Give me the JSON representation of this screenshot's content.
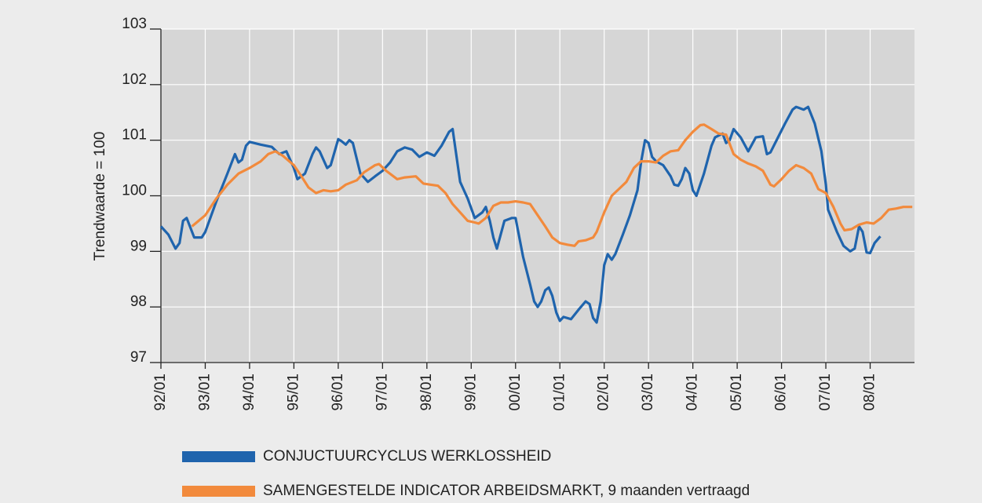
{
  "chart_data": {
    "type": "line",
    "y_label": "Trendwaarde = 100",
    "xlim": [
      1992,
      2009
    ],
    "ylim": [
      97,
      103
    ],
    "yticks": [
      97,
      98,
      99,
      100,
      101,
      102,
      103
    ],
    "xticks": [
      {
        "value": 1992,
        "label": "92/01"
      },
      {
        "value": 1993,
        "label": "93/01"
      },
      {
        "value": 1994,
        "label": "94/01"
      },
      {
        "value": 1995,
        "label": "95/01"
      },
      {
        "value": 1996,
        "label": "96/01"
      },
      {
        "value": 1997,
        "label": "97/01"
      },
      {
        "value": 1998,
        "label": "98/01"
      },
      {
        "value": 1999,
        "label": "99/01"
      },
      {
        "value": 2000,
        "label": "00/01"
      },
      {
        "value": 2001,
        "label": "01/01"
      },
      {
        "value": 2002,
        "label": "02/01"
      },
      {
        "value": 2003,
        "label": "03/01"
      },
      {
        "value": 2004,
        "label": "04/01"
      },
      {
        "value": 2005,
        "label": "05/01"
      },
      {
        "value": 2006,
        "label": "06/01"
      },
      {
        "value": 2007,
        "label": "07/01"
      },
      {
        "value": 2008,
        "label": "08/01"
      }
    ],
    "grid": true,
    "series": [
      {
        "name": "CONJUCTUURCYCLUS WERKLOSSHEID",
        "color": "#1f64ad",
        "x": [
          1992.0,
          1992.17,
          1992.33,
          1992.42,
          1992.5,
          1992.58,
          1992.75,
          1992.92,
          1993.0,
          1993.25,
          1993.5,
          1993.67,
          1993.75,
          1993.83,
          1993.92,
          1994.0,
          1994.25,
          1994.5,
          1994.67,
          1994.83,
          1995.0,
          1995.08,
          1995.25,
          1995.42,
          1995.5,
          1995.58,
          1995.75,
          1995.83,
          1996.0,
          1996.08,
          1996.17,
          1996.25,
          1996.33,
          1996.5,
          1996.67,
          1996.83,
          1997.0,
          1997.17,
          1997.33,
          1997.5,
          1997.67,
          1997.83,
          1998.0,
          1998.17,
          1998.33,
          1998.5,
          1998.58,
          1998.75,
          1998.92,
          1999.08,
          1999.25,
          1999.33,
          1999.42,
          1999.5,
          1999.58,
          1999.75,
          1999.92,
          2000.0,
          2000.17,
          2000.33,
          2000.42,
          2000.5,
          2000.58,
          2000.67,
          2000.75,
          2000.83,
          2000.92,
          2001.0,
          2001.08,
          2001.25,
          2001.42,
          2001.58,
          2001.67,
          2001.75,
          2001.83,
          2001.92,
          2002.0,
          2002.08,
          2002.17,
          2002.25,
          2002.42,
          2002.58,
          2002.75,
          2002.83,
          2002.92,
          2003.0,
          2003.08,
          2003.17,
          2003.33,
          2003.5,
          2003.58,
          2003.67,
          2003.75,
          2003.83,
          2003.92,
          2004.0,
          2004.08,
          2004.25,
          2004.42,
          2004.5,
          2004.67,
          2004.75,
          2004.83,
          2004.92,
          2005.08,
          2005.25,
          2005.42,
          2005.58,
          2005.67,
          2005.75,
          2005.92,
          2006.08,
          2006.25,
          2006.33,
          2006.5,
          2006.6,
          2006.75,
          2006.9,
          2007.0,
          2007.05,
          2007.25,
          2007.4,
          2007.55,
          2007.65,
          2007.75,
          2007.83,
          2007.92,
          2008.0,
          2008.1,
          2008.23
        ],
        "values": [
          99.45,
          99.3,
          99.05,
          99.15,
          99.55,
          99.6,
          99.25,
          99.25,
          99.35,
          99.9,
          100.4,
          100.75,
          100.6,
          100.65,
          100.9,
          100.97,
          100.92,
          100.88,
          100.75,
          100.8,
          100.5,
          100.3,
          100.4,
          100.75,
          100.87,
          100.8,
          100.5,
          100.55,
          101.02,
          100.98,
          100.92,
          101.0,
          100.95,
          100.4,
          100.25,
          100.35,
          100.45,
          100.6,
          100.8,
          100.87,
          100.83,
          100.7,
          100.78,
          100.72,
          100.9,
          101.15,
          101.2,
          100.25,
          99.95,
          99.6,
          99.7,
          99.8,
          99.55,
          99.25,
          99.05,
          99.55,
          99.6,
          99.6,
          98.9,
          98.4,
          98.1,
          98.0,
          98.1,
          98.3,
          98.35,
          98.2,
          97.9,
          97.75,
          97.82,
          97.78,
          97.95,
          98.1,
          98.05,
          97.8,
          97.72,
          98.1,
          98.75,
          98.95,
          98.85,
          98.95,
          99.3,
          99.65,
          100.1,
          100.6,
          101.0,
          100.95,
          100.7,
          100.62,
          100.55,
          100.35,
          100.2,
          100.18,
          100.3,
          100.5,
          100.4,
          100.1,
          100.0,
          100.4,
          100.9,
          101.05,
          101.12,
          100.95,
          101.0,
          101.2,
          101.05,
          100.8,
          101.05,
          101.07,
          100.75,
          100.78,
          101.05,
          101.3,
          101.55,
          101.6,
          101.55,
          101.6,
          101.3,
          100.8,
          100.2,
          99.75,
          99.35,
          99.1,
          99.0,
          99.05,
          99.45,
          99.35,
          98.98,
          98.97,
          99.15,
          99.27
        ]
      },
      {
        "name": "SAMENGESTELDE INDICATOR ARBEIDSMARKT, 9 maanden vertraagd",
        "color": "#f28a3c",
        "x": [
          1992.7,
          1993.0,
          1993.25,
          1993.5,
          1993.75,
          1994.0,
          1994.25,
          1994.42,
          1994.58,
          1994.75,
          1995.0,
          1995.17,
          1995.33,
          1995.5,
          1995.67,
          1995.83,
          1996.0,
          1996.17,
          1996.42,
          1996.58,
          1996.83,
          1996.92,
          1997.08,
          1997.33,
          1997.5,
          1997.75,
          1997.92,
          1998.08,
          1998.25,
          1998.42,
          1998.58,
          1998.75,
          1998.92,
          1999.08,
          1999.17,
          1999.33,
          1999.5,
          1999.67,
          1999.83,
          2000.0,
          2000.17,
          2000.33,
          2000.5,
          2000.67,
          2000.83,
          2001.0,
          2001.17,
          2001.33,
          2001.42,
          2001.58,
          2001.75,
          2001.83,
          2002.0,
          2002.17,
          2002.33,
          2002.5,
          2002.67,
          2002.83,
          2003.0,
          2003.17,
          2003.33,
          2003.5,
          2003.67,
          2003.83,
          2004.0,
          2004.17,
          2004.25,
          2004.42,
          2004.58,
          2004.75,
          2004.92,
          2005.08,
          2005.25,
          2005.42,
          2005.58,
          2005.75,
          2005.83,
          2006.0,
          2006.17,
          2006.33,
          2006.5,
          2006.67,
          2006.83,
          2007.0,
          2007.17,
          2007.33,
          2007.42,
          2007.58,
          2007.75,
          2007.92,
          2008.08,
          2008.25,
          2008.42,
          2008.58,
          2008.75,
          2008.95
        ],
        "values": [
          99.45,
          99.65,
          99.95,
          100.2,
          100.4,
          100.5,
          100.62,
          100.75,
          100.8,
          100.72,
          100.55,
          100.35,
          100.15,
          100.05,
          100.1,
          100.08,
          100.1,
          100.2,
          100.28,
          100.42,
          100.55,
          100.57,
          100.45,
          100.3,
          100.33,
          100.35,
          100.22,
          100.2,
          100.18,
          100.05,
          99.85,
          99.7,
          99.55,
          99.52,
          99.5,
          99.6,
          99.82,
          99.88,
          99.88,
          99.9,
          99.88,
          99.85,
          99.65,
          99.45,
          99.25,
          99.15,
          99.12,
          99.1,
          99.18,
          99.2,
          99.25,
          99.35,
          99.7,
          100.0,
          100.12,
          100.25,
          100.5,
          100.62,
          100.62,
          100.6,
          100.72,
          100.8,
          100.82,
          101.0,
          101.15,
          101.27,
          101.28,
          101.2,
          101.12,
          101.1,
          100.75,
          100.65,
          100.58,
          100.53,
          100.45,
          100.2,
          100.17,
          100.3,
          100.45,
          100.55,
          100.5,
          100.4,
          100.12,
          100.05,
          99.8,
          99.5,
          99.38,
          99.4,
          99.48,
          99.52,
          99.5,
          99.6,
          99.75,
          99.77,
          99.8,
          99.8
        ]
      }
    ]
  }
}
